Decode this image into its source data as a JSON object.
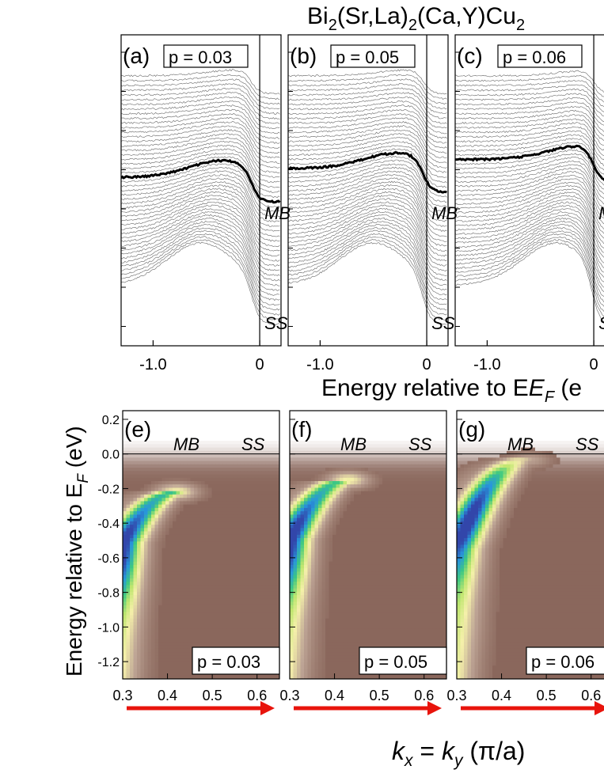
{
  "figure": {
    "title": "Bi2(Sr,La)2(Ca,Y)Cu2",
    "edc_xlabel": "Energy relative to E",
    "edc_xlabel_sub": "F",
    "edc_xlabel_tail": "(e",
    "map_ylabel": "Energy relative to E",
    "map_ylabel_sub": "F",
    "map_ylabel_unit": "(eV)",
    "kx_label": "k",
    "kx_sub": "x",
    "ky_label": "k",
    "ky_sub": "y",
    "k_unit": "(π/a)"
  },
  "colors": {
    "arrow": "#e8140c",
    "curve": "#666666",
    "highlight": "#000000",
    "map_background": "#8a675c"
  },
  "chart_data": [
    {
      "type": "line",
      "id": "edc-a",
      "panel_label": "(a)",
      "doping_label": "p = 0.03",
      "p": 0.03,
      "x_ticks": [
        "-1.0",
        "0"
      ],
      "x_tick_values": [
        -1.0,
        0
      ],
      "xlim": [
        -1.3,
        0.2
      ],
      "band_labels": [
        "MB",
        "SS"
      ],
      "curve_count": 48,
      "highlighted_curve_index": 22,
      "peak_energy": -0.55,
      "edge_energy": -0.1
    },
    {
      "type": "line",
      "id": "edc-b",
      "panel_label": "(b)",
      "doping_label": "p = 0.05",
      "p": 0.05,
      "x_ticks": [
        "-1.0",
        "0"
      ],
      "x_tick_values": [
        -1.0,
        0
      ],
      "xlim": [
        -1.3,
        0.2
      ],
      "band_labels": [
        "MB",
        "SS"
      ],
      "curve_count": 48,
      "highlighted_curve_index": 20,
      "peak_energy": -0.5,
      "edge_energy": -0.05
    },
    {
      "type": "line",
      "id": "edc-c",
      "panel_label": "(c)",
      "doping_label": "p = 0.06",
      "p": 0.06,
      "x_ticks": [
        "-1.0",
        "0"
      ],
      "x_tick_values": [
        -1.0,
        0
      ],
      "xlim": [
        -1.3,
        0.2
      ],
      "band_labels": [
        "M",
        "S"
      ],
      "curve_count": 48,
      "highlighted_curve_index": 18,
      "peak_energy": -0.35,
      "edge_energy": -0.02
    },
    {
      "type": "heatmap",
      "id": "map-e",
      "panel_label": "(e)",
      "doping_label": "p = 0.03",
      "p": 0.03,
      "band_labels": [
        "MB",
        "SS"
      ],
      "x_ticks": [
        "0.3",
        "0.4",
        "0.5",
        "0.6"
      ],
      "x_tick_values": [
        0.3,
        0.4,
        0.5,
        0.6
      ],
      "y_ticks": [
        "0.2",
        "0.0",
        "-0.2",
        "-0.4",
        "-0.6",
        "-0.8",
        "-1.0",
        "-1.2"
      ],
      "y_tick_values": [
        0.2,
        0.0,
        -0.2,
        -0.4,
        -0.6,
        -0.8,
        -1.0,
        -1.2
      ],
      "xlim": [
        0.3,
        0.65
      ],
      "ylim": [
        -1.3,
        0.25
      ],
      "band_top_energy": -0.22,
      "band_top_k": 0.42,
      "max_intensity_energy": -0.55
    },
    {
      "type": "heatmap",
      "id": "map-f",
      "panel_label": "(f)",
      "doping_label": "p = 0.05",
      "p": 0.05,
      "band_labels": [
        "MB",
        "SS"
      ],
      "x_ticks": [
        "0.3",
        "0.4",
        "0.5",
        "0.6"
      ],
      "x_tick_values": [
        0.3,
        0.4,
        0.5,
        0.6
      ],
      "y_ticks": [
        "0.2",
        "0.0",
        "-0.2",
        "-0.4",
        "-0.6",
        "-0.8",
        "-1.0",
        "-1.2"
      ],
      "y_tick_values": [
        0.2,
        0.0,
        -0.2,
        -0.4,
        -0.6,
        -0.8,
        -1.0,
        -1.2
      ],
      "xlim": [
        0.3,
        0.65
      ],
      "ylim": [
        -1.3,
        0.25
      ],
      "band_top_energy": -0.15,
      "band_top_k": 0.43,
      "max_intensity_energy": -0.5
    },
    {
      "type": "heatmap",
      "id": "map-g",
      "panel_label": "(g)",
      "doping_label": "p = 0.06",
      "p": 0.06,
      "band_labels": [
        "MB",
        "SS"
      ],
      "x_ticks": [
        "0.3",
        "0.4",
        "0.5",
        "0.6"
      ],
      "x_tick_values": [
        0.3,
        0.4,
        0.5,
        0.6
      ],
      "y_ticks": [
        "0.2",
        "0.0",
        "-0.2",
        "-0.4",
        "-0.6",
        "-0.8",
        "-1.0",
        "-1.2"
      ],
      "y_tick_values": [
        0.2,
        0.0,
        -0.2,
        -0.4,
        -0.6,
        -0.8,
        -1.0,
        -1.2
      ],
      "xlim": [
        0.3,
        0.65
      ],
      "ylim": [
        -1.3,
        0.25
      ],
      "band_top_energy": -0.02,
      "band_top_k": 0.46,
      "max_intensity_energy": -0.4
    }
  ]
}
